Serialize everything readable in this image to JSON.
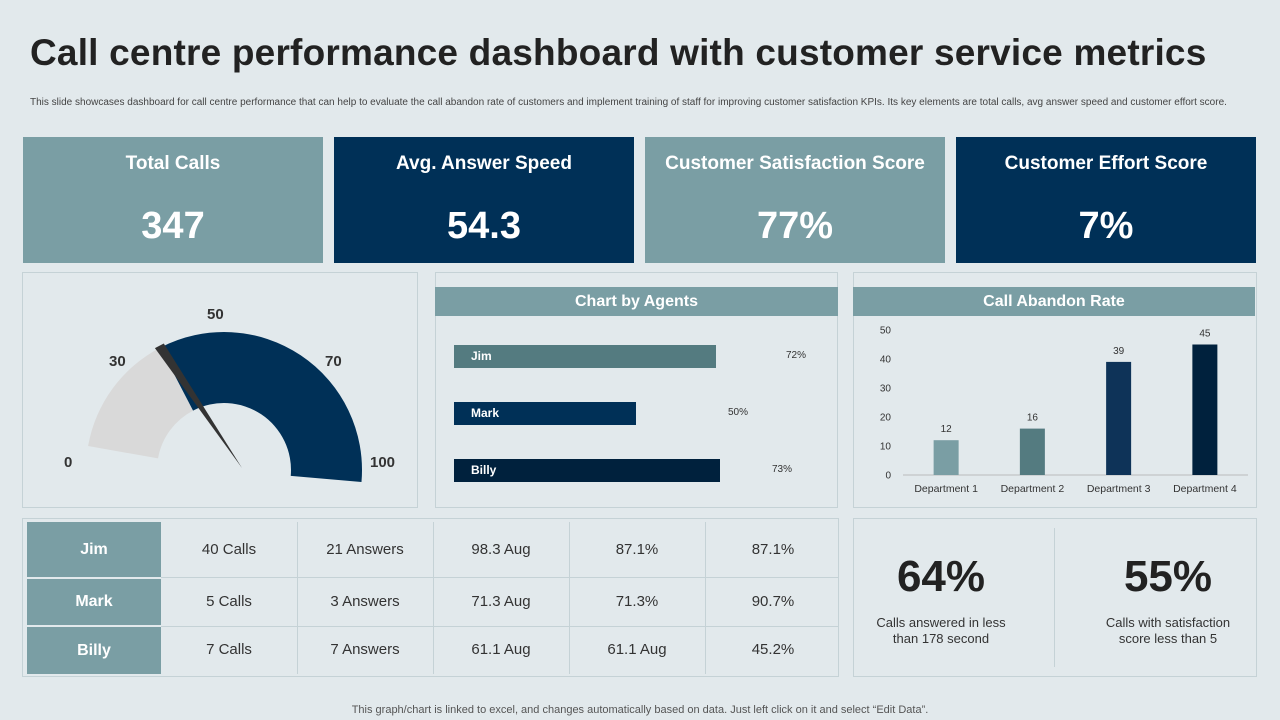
{
  "title": "Call centre performance dashboard with customer service metrics",
  "subtitle": "This slide showcases dashboard for call centre performance that can help to evaluate the call abandon rate of customers and implement training of staff for improving customer satisfaction KPIs. Its key elements are total calls, avg answer speed and customer effort score.",
  "kpis": [
    {
      "label": "Total Calls",
      "value": "347"
    },
    {
      "label": "Avg. Answer Speed",
      "value": "54.3"
    },
    {
      "label": "Customer Satisfaction Score",
      "value": "77%"
    },
    {
      "label": "Customer Effort Score",
      "value": "7%"
    }
  ],
  "gauge": {
    "labels": [
      "0",
      "30",
      "50",
      "70",
      "100"
    ],
    "value": 30
  },
  "agents_title": "Chart by Agents",
  "abandon_title": "Call Abandon Rate",
  "table": {
    "rows": [
      {
        "name": "Jim",
        "cells": [
          "40 Calls",
          "21 Answers",
          "98.3 Aug",
          "87.1%",
          "87.1%"
        ]
      },
      {
        "name": "Mark",
        "cells": [
          "5 Calls",
          "3 Answers",
          "71.3 Aug",
          "71.3%",
          "90.7%"
        ]
      },
      {
        "name": "Billy",
        "cells": [
          "7 Calls",
          "7  Answers",
          "61.1 Aug",
          "61.1 Aug",
          "45.2%"
        ]
      }
    ]
  },
  "stats": [
    {
      "value": "64%",
      "caption_1": "Calls answered in less",
      "caption_2": "than 178 second"
    },
    {
      "value": "55%",
      "caption_1": "Calls with satisfaction",
      "caption_2": "score less than 5"
    }
  ],
  "footer": "This graph/chart is linked to excel,  and changes automatically based on data. Just left click on it and select “Edit Data”.",
  "colors": {
    "teal": "#7a9ea4",
    "navy": "#003057",
    "grey_teal": "#547b80"
  },
  "chart_data": [
    {
      "type": "bar",
      "orientation": "horizontal",
      "title": "Chart by Agents",
      "categories": [
        "Jim",
        "Mark",
        "Billy"
      ],
      "values": [
        72,
        50,
        73
      ],
      "labels": [
        "72%",
        "50%",
        "73%"
      ]
    },
    {
      "type": "bar",
      "title": "Call Abandon Rate",
      "categories": [
        "Department 1",
        "Department 2",
        "Department 3",
        "Department 4"
      ],
      "values": [
        12,
        16,
        39,
        45
      ],
      "ylim": [
        0,
        50
      ],
      "yticks": [
        "0",
        "10",
        "20",
        "30",
        "40",
        "50"
      ]
    }
  ]
}
